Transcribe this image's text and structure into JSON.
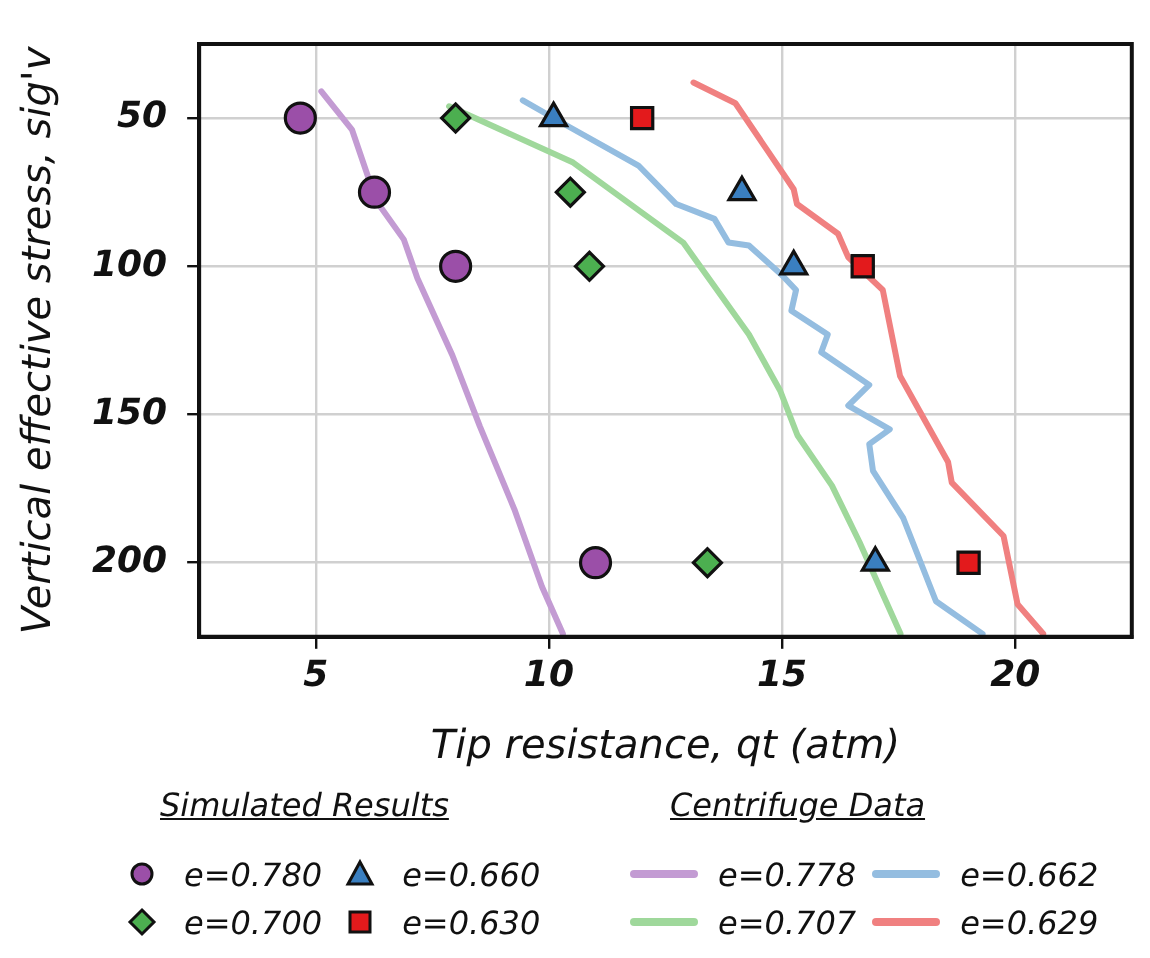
{
  "chart_data": {
    "type": "scatter",
    "xlabel": "Tip resistance, qt (atm)",
    "ylabel": "Vertical effective stress, sig'v",
    "xlim": [
      2.5,
      22.5
    ],
    "xticks": [
      5,
      10,
      15,
      20
    ],
    "ylim": [
      225,
      25
    ],
    "yticks": [
      50,
      100,
      150,
      200
    ],
    "grid": true,
    "legend": "bottom",
    "annotations": [
      "Simulated Results",
      "Centrifuge Data"
    ],
    "series": [
      {
        "name": "e=0.780",
        "marker": "circle",
        "color": "#9b4fa8",
        "x": [
          4.67,
          6.26,
          8.0,
          11.0
        ],
        "values": [
          50,
          75,
          100,
          200
        ]
      },
      {
        "name": "e=0.700",
        "marker": "diamond",
        "color": "#4caf50",
        "x": [
          8.0,
          10.46,
          10.87,
          13.4
        ],
        "values": [
          50,
          75,
          100,
          200
        ]
      },
      {
        "name": "e=0.660",
        "marker": "triangle",
        "color": "#3a7fc0",
        "x": [
          10.1,
          14.14,
          15.25,
          17.0
        ],
        "values": [
          50,
          75,
          100,
          200
        ]
      },
      {
        "name": "e=0.630",
        "marker": "square",
        "color": "#e31a1c",
        "x": [
          12.0,
          16.73,
          19.0
        ],
        "values": [
          50,
          100,
          200
        ]
      },
      {
        "name": "e=0.778",
        "type": "line",
        "marker": "none",
        "color": "#c39bd3",
        "x": [
          5.12,
          5.78,
          6.3,
          6.89,
          7.18,
          7.93,
          8.52,
          9.26,
          9.85,
          10.3
        ],
        "values": [
          41,
          54,
          78,
          91,
          104,
          130,
          154,
          182,
          208,
          224
        ]
      },
      {
        "name": "e=0.707",
        "type": "line",
        "marker": "none",
        "color": "#9fd89b",
        "x": [
          7.86,
          10.52,
          12.88,
          14.29,
          14.96,
          15.33,
          16.07,
          16.66,
          17.17,
          17.54
        ],
        "values": [
          46,
          65,
          92,
          123,
          142,
          157,
          174,
          193,
          211,
          224
        ]
      },
      {
        "name": "e=0.662",
        "type": "line",
        "marker": "none",
        "color": "#94bde0",
        "x": [
          9.44,
          10.44,
          11.92,
          12.73,
          13.55,
          13.85,
          14.29,
          15.0,
          15.3,
          15.2,
          15.98,
          15.84,
          16.87,
          16.42,
          17.31,
          16.87,
          16.95,
          17.6,
          18.3,
          19.3
        ],
        "values": [
          44,
          53,
          66,
          79,
          84,
          92,
          93,
          103,
          108,
          115,
          123,
          129,
          140,
          147,
          155,
          160,
          169,
          185,
          213,
          224
        ]
      },
      {
        "name": "e=0.629",
        "type": "line",
        "marker": "none",
        "color": "#f08080",
        "x": [
          13.1,
          14.0,
          15.25,
          15.32,
          16.2,
          16.42,
          17.16,
          17.53,
          18.56,
          18.64,
          19.75,
          20.05,
          20.6
        ],
        "values": [
          38,
          45,
          74,
          79,
          89,
          97,
          108,
          137,
          166,
          173,
          191,
          214,
          224
        ]
      }
    ]
  }
}
